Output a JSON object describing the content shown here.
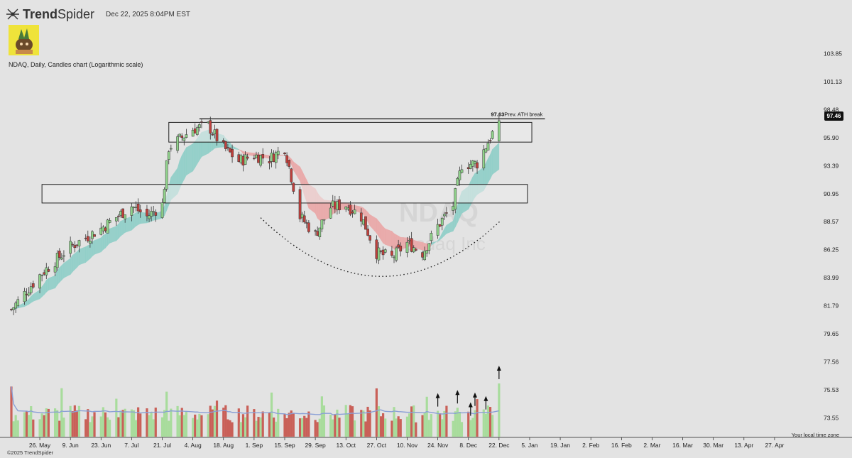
{
  "header": {
    "brand": "TrendSpider",
    "brand_bold": "Trend",
    "brand_light": "Spider",
    "timestamp": "Dec 22, 2025 8:04PM EST"
  },
  "chart_title": "NDAQ, Daily, Candles chart (Logarithmic scale)",
  "watermark": {
    "symbol": "NDAQ",
    "exchange": "Nasdaq Inc"
  },
  "copyright": "©2025 TrendSpider",
  "timezone_note": "Your local time zone",
  "last_price_label": "97.46",
  "annotation": {
    "value": "97.63",
    "text": "Prev. ATH break"
  },
  "colors": {
    "up": "#8fd38a",
    "down": "#c0403c",
    "up_vol": "#a8dc9c",
    "down_vol": "#c96058",
    "cloud_bull": "#8fcfc8",
    "cloud_bear": "#eaa7a7",
    "vol_ma": "#8aa0d6"
  },
  "chart_data": {
    "type": "candlestick",
    "title": "NDAQ, Daily, Candles chart (Logarithmic scale)",
    "y_scale": "log",
    "ylim": [
      72.5,
      106
    ],
    "y_ticks": [
      "103.85",
      "101.13",
      "98.48",
      "95.90",
      "93.39",
      "90.95",
      "88.57",
      "86.25",
      "83.99",
      "81.79",
      "79.65",
      "77.56",
      "75.53",
      "73.55"
    ],
    "x_ticks": [
      "26. May",
      "9. Jun",
      "23. Jun",
      "7. Jul",
      "21. Jul",
      "4. Aug",
      "18. Aug",
      "1. Sep",
      "15. Sep",
      "29. Sep",
      "13. Oct",
      "27. Oct",
      "10. Nov",
      "24. Nov",
      "8. Dec",
      "22. Dec",
      "5. Jan",
      "19. Jan",
      "2. Feb",
      "16. Feb",
      "2. Mar",
      "16. Mar",
      "30. Mar",
      "13. Apr",
      "27. Apr"
    ],
    "x_start": "2025-05-13",
    "anchors": [
      [
        "2025-05-13",
        81.5
      ],
      [
        "2025-05-26",
        84.2
      ],
      [
        "2025-06-09",
        86.5
      ],
      [
        "2025-06-23",
        88.0
      ],
      [
        "2025-07-07",
        89.9
      ],
      [
        "2025-07-14",
        89.0
      ],
      [
        "2025-07-21",
        90.0
      ],
      [
        "2025-07-24",
        95.0
      ],
      [
        "2025-08-04",
        96.7
      ],
      [
        "2025-08-11",
        97.0
      ],
      [
        "2025-08-18",
        95.0
      ],
      [
        "2025-08-25",
        93.8
      ],
      [
        "2025-09-01",
        94.3
      ],
      [
        "2025-09-08",
        94.0
      ],
      [
        "2025-09-15",
        95.0
      ],
      [
        "2025-09-22",
        89.0
      ],
      [
        "2025-09-29",
        87.5
      ],
      [
        "2025-10-06",
        89.8
      ],
      [
        "2025-10-13",
        90.0
      ],
      [
        "2025-10-20",
        89.0
      ],
      [
        "2025-10-27",
        86.0
      ],
      [
        "2025-11-03",
        85.6
      ],
      [
        "2025-11-10",
        86.8
      ],
      [
        "2025-11-17",
        86.0
      ],
      [
        "2025-11-24",
        88.2
      ],
      [
        "2025-12-01",
        90.0
      ],
      [
        "2025-12-05",
        93.5
      ],
      [
        "2025-12-12",
        93.6
      ],
      [
        "2025-12-22",
        97.46
      ]
    ],
    "zones": [
      {
        "start": "2025-07-24",
        "end": "2026-01-06",
        "low": 95.5,
        "high": 97.3
      },
      {
        "start": "2025-05-27",
        "end": "2026-01-04",
        "low": 90.15,
        "high": 91.75
      }
    ],
    "ath_line": {
      "value": 97.63,
      "start": "2025-08-07",
      "end": "2026-01-12"
    },
    "rounding_bottom": {
      "start": "2025-09-04",
      "end": "2025-12-23",
      "left": 88.9,
      "low": 84.1,
      "right": 88.7
    },
    "volume_arrow_dates": [
      "2025-11-24",
      "2025-12-03",
      "2025-12-09",
      "2025-12-11",
      "2025-12-16",
      "2025-12-22"
    ]
  }
}
